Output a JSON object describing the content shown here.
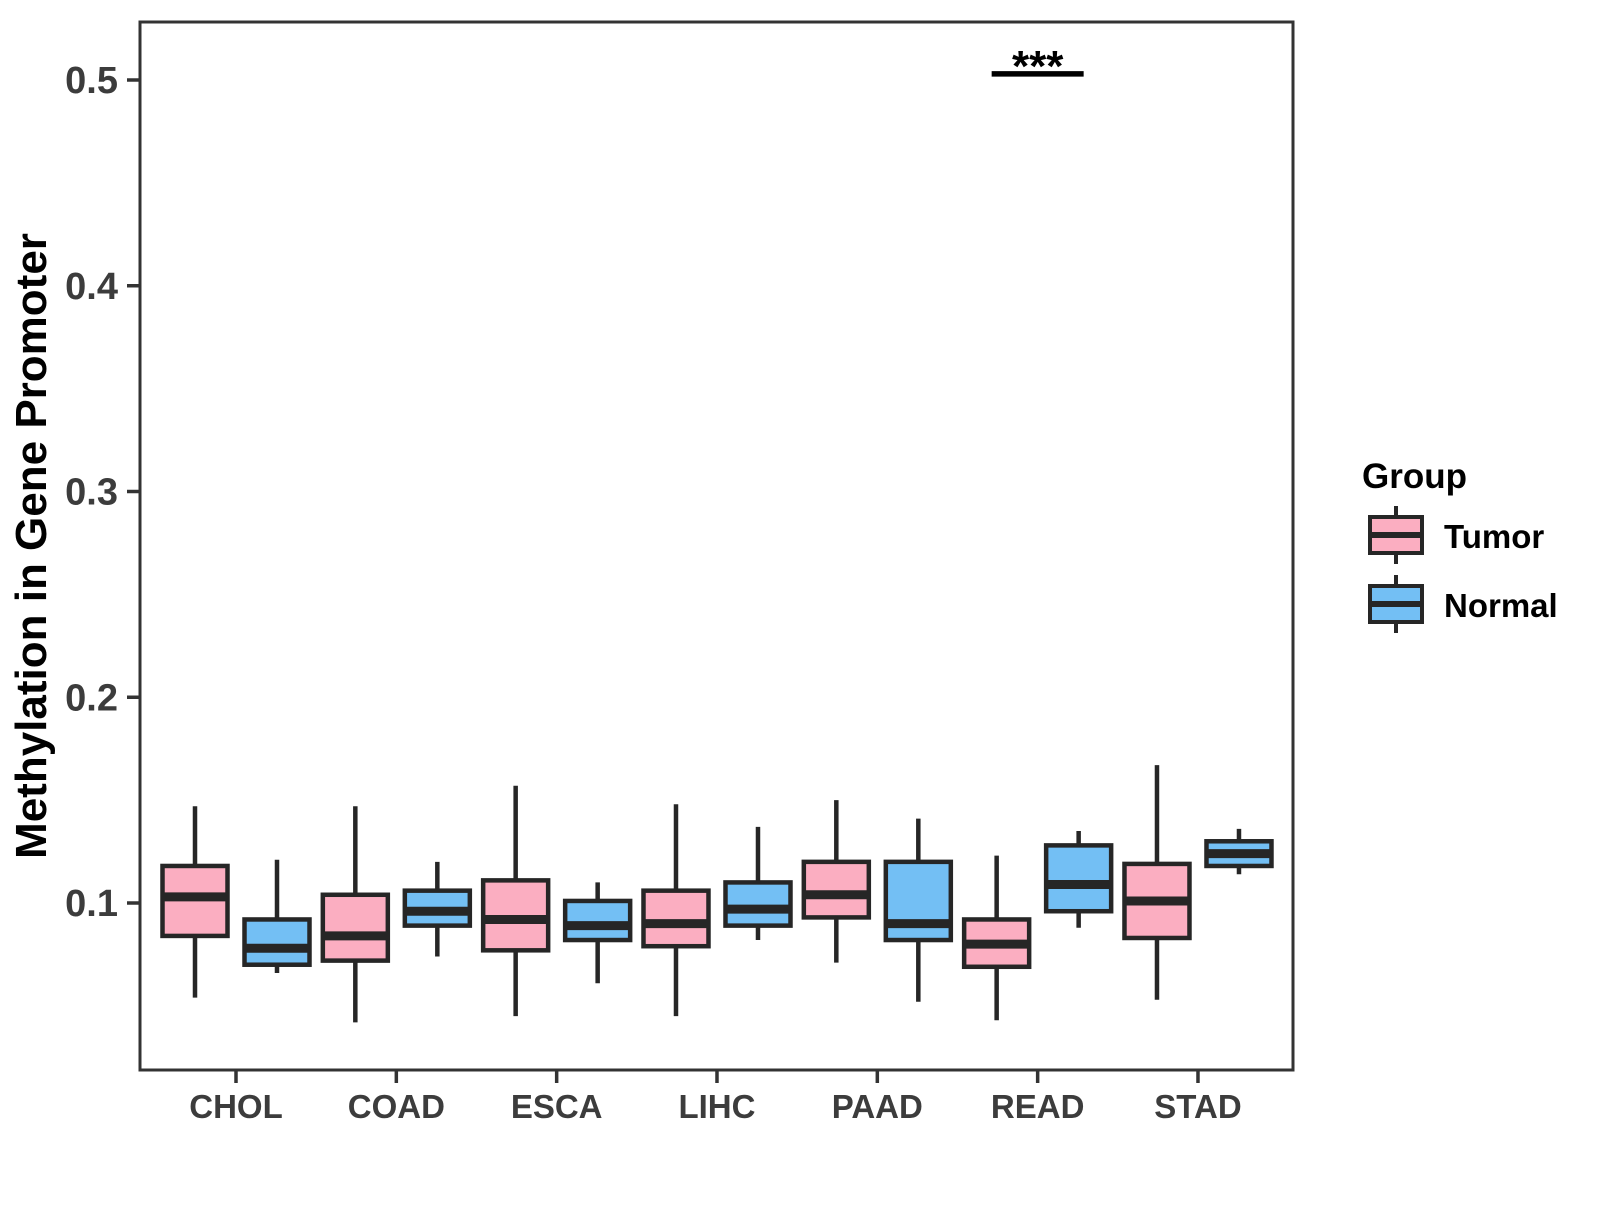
{
  "figure": {
    "y_axis": {
      "label": "Methylation in Gene Promoter",
      "tick_labels": [
        "0.1",
        "0.2",
        "0.3",
        "0.4",
        "0.5"
      ]
    },
    "x_axis": {
      "tick_labels": [
        "CHOL",
        "COAD",
        "ESCA",
        "LIHC",
        "PAAD",
        "READ",
        "STAD"
      ]
    },
    "legend": {
      "title": "Group",
      "items": [
        {
          "label": "Tumor",
          "color": "#FBAEC1"
        },
        {
          "label": "Normal",
          "color": "#73BFF4"
        }
      ]
    },
    "colors": {
      "tumor_fill": "#FBAEC1",
      "normal_fill": "#73BFF4",
      "box_stroke": "#262626",
      "axis_stroke": "#333333",
      "tick_text": "#3c3c3c",
      "background": "#ffffff"
    },
    "significance_label": "***"
  },
  "chart_data": {
    "type": "boxplot",
    "title": "",
    "xlabel": "",
    "ylabel": "Methylation in Gene Promoter",
    "categories": [
      "CHOL",
      "COAD",
      "ESCA",
      "LIHC",
      "PAAD",
      "READ",
      "STAD"
    ],
    "yticks": [
      0.1,
      0.2,
      0.3,
      0.4,
      0.5
    ],
    "ylim": [
      0.02,
      0.53
    ],
    "grid": false,
    "legend_position": "right",
    "series": [
      {
        "name": "Tumor",
        "color": "#FBAEC1",
        "boxes": [
          {
            "category": "CHOL",
            "min": 0.054,
            "q1": 0.084,
            "median": 0.103,
            "q3": 0.118,
            "max": 0.147
          },
          {
            "category": "COAD",
            "min": 0.042,
            "q1": 0.072,
            "median": 0.084,
            "q3": 0.104,
            "max": 0.147
          },
          {
            "category": "ESCA",
            "min": 0.045,
            "q1": 0.077,
            "median": 0.092,
            "q3": 0.111,
            "max": 0.157
          },
          {
            "category": "LIHC",
            "min": 0.045,
            "q1": 0.079,
            "median": 0.09,
            "q3": 0.106,
            "max": 0.148
          },
          {
            "category": "PAAD",
            "min": 0.071,
            "q1": 0.093,
            "median": 0.104,
            "q3": 0.12,
            "max": 0.15
          },
          {
            "category": "READ",
            "min": 0.043,
            "q1": 0.069,
            "median": 0.08,
            "q3": 0.092,
            "max": 0.123
          },
          {
            "category": "STAD",
            "min": 0.053,
            "q1": 0.083,
            "median": 0.101,
            "q3": 0.119,
            "max": 0.167
          }
        ]
      },
      {
        "name": "Normal",
        "color": "#73BFF4",
        "boxes": [
          {
            "category": "CHOL",
            "min": 0.066,
            "q1": 0.07,
            "median": 0.078,
            "q3": 0.092,
            "max": 0.121
          },
          {
            "category": "COAD",
            "min": 0.074,
            "q1": 0.089,
            "median": 0.096,
            "q3": 0.106,
            "max": 0.12
          },
          {
            "category": "ESCA",
            "min": 0.061,
            "q1": 0.082,
            "median": 0.089,
            "q3": 0.101,
            "max": 0.11
          },
          {
            "category": "LIHC",
            "min": 0.082,
            "q1": 0.089,
            "median": 0.097,
            "q3": 0.11,
            "max": 0.137
          },
          {
            "category": "PAAD",
            "min": 0.052,
            "q1": 0.082,
            "median": 0.09,
            "q3": 0.12,
            "max": 0.141
          },
          {
            "category": "READ",
            "min": 0.088,
            "q1": 0.096,
            "median": 0.109,
            "q3": 0.128,
            "max": 0.135
          },
          {
            "category": "STAD",
            "min": 0.114,
            "q1": 0.118,
            "median": 0.124,
            "q3": 0.13,
            "max": 0.136
          }
        ]
      }
    ],
    "annotations": [
      {
        "type": "significance",
        "label": "***",
        "category": "READ",
        "between": [
          "Tumor",
          "Normal"
        ],
        "y": 0.503
      }
    ]
  }
}
